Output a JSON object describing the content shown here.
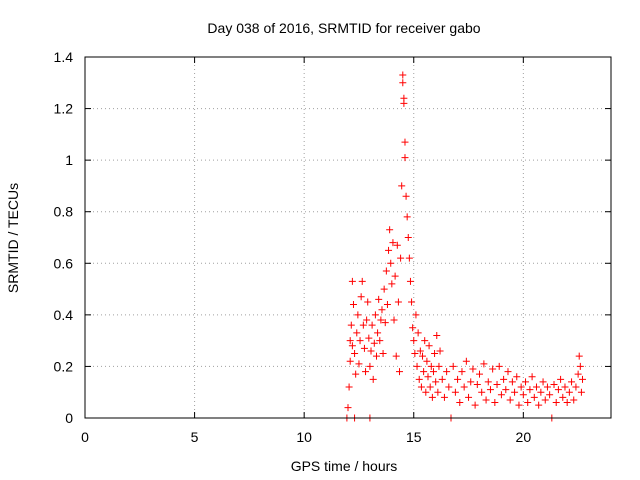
{
  "chart_data": {
    "type": "scatter",
    "title": "Day 038 of 2016, SRMTID for receiver gabo",
    "xlabel": "GPS time / hours",
    "ylabel": "SRMTID / TECUs",
    "xlim": [
      0,
      24
    ],
    "ylim": [
      0,
      1.4
    ],
    "xticks": [
      0,
      5,
      10,
      15,
      20
    ],
    "yticks": [
      0,
      0.2,
      0.4,
      0.6,
      0.8,
      1.0,
      1.2,
      1.4
    ],
    "xtick_labels": [
      "0",
      "5",
      "10",
      "15",
      "20"
    ],
    "ytick_labels": [
      "0",
      "0.2",
      "0.4",
      "0.6",
      "0.8",
      "1",
      "1.2",
      "1.4"
    ],
    "grid": true,
    "marker": "+",
    "series": [
      {
        "name": "SRMTID",
        "color": "#ff0000",
        "points": [
          [
            11.95,
            0.0
          ],
          [
            12.0,
            0.04
          ],
          [
            12.05,
            0.12
          ],
          [
            12.1,
            0.22
          ],
          [
            12.1,
            0.3
          ],
          [
            12.15,
            0.36
          ],
          [
            12.2,
            0.28
          ],
          [
            12.2,
            0.53
          ],
          [
            12.25,
            0.44
          ],
          [
            12.3,
            0.25
          ],
          [
            12.3,
            0.0
          ],
          [
            12.35,
            0.17
          ],
          [
            12.4,
            0.33
          ],
          [
            12.45,
            0.4
          ],
          [
            12.5,
            0.21
          ],
          [
            12.55,
            0.3
          ],
          [
            12.6,
            0.47
          ],
          [
            12.65,
            0.53
          ],
          [
            12.7,
            0.36
          ],
          [
            12.75,
            0.27
          ],
          [
            12.8,
            0.18
          ],
          [
            12.85,
            0.38
          ],
          [
            12.9,
            0.45
          ],
          [
            12.95,
            0.31
          ],
          [
            13.0,
            0.2
          ],
          [
            13.0,
            0.0
          ],
          [
            13.05,
            0.26
          ],
          [
            13.1,
            0.36
          ],
          [
            13.15,
            0.15
          ],
          [
            13.2,
            0.29
          ],
          [
            13.25,
            0.4
          ],
          [
            13.3,
            0.24
          ],
          [
            13.35,
            0.33
          ],
          [
            13.4,
            0.46
          ],
          [
            13.45,
            0.3
          ],
          [
            13.5,
            0.38
          ],
          [
            13.55,
            0.42
          ],
          [
            13.6,
            0.25
          ],
          [
            13.65,
            0.5
          ],
          [
            13.7,
            0.37
          ],
          [
            13.75,
            0.57
          ],
          [
            13.8,
            0.44
          ],
          [
            13.85,
            0.65
          ],
          [
            13.9,
            0.73
          ],
          [
            13.95,
            0.6
          ],
          [
            14.0,
            0.52
          ],
          [
            14.05,
            0.68
          ],
          [
            14.1,
            0.38
          ],
          [
            14.15,
            0.55
          ],
          [
            14.2,
            0.24
          ],
          [
            14.25,
            0.67
          ],
          [
            14.3,
            0.45
          ],
          [
            14.35,
            0.18
          ],
          [
            14.4,
            0.62
          ],
          [
            14.45,
            0.9
          ],
          [
            14.5,
            1.33
          ],
          [
            14.5,
            1.3
          ],
          [
            14.55,
            1.24
          ],
          [
            14.55,
            1.22
          ],
          [
            14.6,
            1.07
          ],
          [
            14.6,
            1.01
          ],
          [
            14.65,
            0.86
          ],
          [
            14.7,
            0.78
          ],
          [
            14.75,
            0.7
          ],
          [
            14.8,
            0.62
          ],
          [
            14.85,
            0.53
          ],
          [
            14.9,
            0.45
          ],
          [
            14.95,
            0.35
          ],
          [
            15.0,
            0.3
          ],
          [
            15.05,
            0.25
          ],
          [
            15.1,
            0.4
          ],
          [
            15.15,
            0.2
          ],
          [
            15.2,
            0.33
          ],
          [
            15.25,
            0.15
          ],
          [
            15.3,
            0.26
          ],
          [
            15.35,
            0.12
          ],
          [
            15.4,
            0.24
          ],
          [
            15.45,
            0.18
          ],
          [
            15.5,
            0.3
          ],
          [
            15.55,
            0.1
          ],
          [
            15.6,
            0.22
          ],
          [
            15.65,
            0.16
          ],
          [
            15.7,
            0.28
          ],
          [
            15.75,
            0.12
          ],
          [
            15.8,
            0.2
          ],
          [
            15.85,
            0.08
          ],
          [
            15.9,
            0.18
          ],
          [
            15.95,
            0.25
          ],
          [
            16.0,
            0.14
          ],
          [
            16.05,
            0.32
          ],
          [
            16.1,
            0.1
          ],
          [
            16.15,
            0.2
          ],
          [
            16.2,
            0.26
          ],
          [
            16.3,
            0.15
          ],
          [
            16.4,
            0.08
          ],
          [
            16.5,
            0.18
          ],
          [
            16.6,
            0.12
          ],
          [
            16.7,
            0.0
          ],
          [
            16.8,
            0.2
          ],
          [
            16.9,
            0.1
          ],
          [
            17.0,
            0.15
          ],
          [
            17.1,
            0.06
          ],
          [
            17.2,
            0.18
          ],
          [
            17.3,
            0.12
          ],
          [
            17.4,
            0.22
          ],
          [
            17.5,
            0.08
          ],
          [
            17.6,
            0.14
          ],
          [
            17.7,
            0.19
          ],
          [
            17.8,
            0.05
          ],
          [
            17.9,
            0.13
          ],
          [
            18.0,
            0.17
          ],
          [
            18.1,
            0.1
          ],
          [
            18.2,
            0.21
          ],
          [
            18.3,
            0.07
          ],
          [
            18.4,
            0.14
          ],
          [
            18.5,
            0.11
          ],
          [
            18.6,
            0.19
          ],
          [
            18.7,
            0.06
          ],
          [
            18.8,
            0.13
          ],
          [
            18.9,
            0.2
          ],
          [
            19.0,
            0.09
          ],
          [
            19.1,
            0.15
          ],
          [
            19.2,
            0.11
          ],
          [
            19.3,
            0.18
          ],
          [
            19.4,
            0.07
          ],
          [
            19.5,
            0.14
          ],
          [
            19.6,
            0.1
          ],
          [
            19.7,
            0.16
          ],
          [
            19.8,
            0.05
          ],
          [
            19.9,
            0.12
          ],
          [
            20.0,
            0.09
          ],
          [
            20.1,
            0.14
          ],
          [
            20.2,
            0.06
          ],
          [
            20.3,
            0.11
          ],
          [
            20.4,
            0.16
          ],
          [
            20.5,
            0.08
          ],
          [
            20.6,
            0.12
          ],
          [
            20.7,
            0.05
          ],
          [
            20.8,
            0.1
          ],
          [
            20.9,
            0.14
          ],
          [
            21.0,
            0.07
          ],
          [
            21.1,
            0.12
          ],
          [
            21.2,
            0.09
          ],
          [
            21.3,
            0.0
          ],
          [
            21.4,
            0.13
          ],
          [
            21.5,
            0.06
          ],
          [
            21.6,
            0.11
          ],
          [
            21.7,
            0.15
          ],
          [
            21.8,
            0.08
          ],
          [
            21.9,
            0.12
          ],
          [
            22.0,
            0.06
          ],
          [
            22.1,
            0.1
          ],
          [
            22.2,
            0.14
          ],
          [
            22.3,
            0.07
          ],
          [
            22.4,
            0.12
          ],
          [
            22.5,
            0.17
          ],
          [
            22.55,
            0.24
          ],
          [
            22.6,
            0.2
          ],
          [
            22.65,
            0.1
          ],
          [
            22.7,
            0.15
          ]
        ]
      }
    ]
  }
}
